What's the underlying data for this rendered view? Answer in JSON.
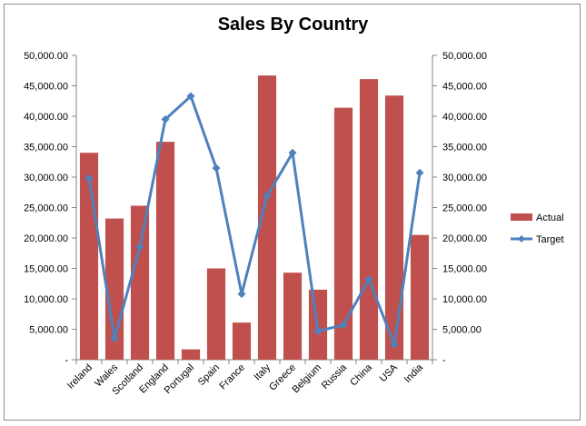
{
  "chart_data": {
    "type": "bar",
    "title": "Sales By Country",
    "categories": [
      "Ireland",
      "Wales",
      "Scotland",
      "England",
      "Portugal",
      "Spain",
      "France",
      "Italy",
      "Greece",
      "Belgium",
      "Russia",
      "China",
      "USA",
      "India"
    ],
    "series": [
      {
        "name": "Actual",
        "type": "bar",
        "color": "#c0504d",
        "values": [
          34000,
          23200,
          25300,
          35800,
          1700,
          15000,
          6100,
          46700,
          14300,
          11500,
          41400,
          46100,
          43400,
          20500
        ]
      },
      {
        "name": "Target",
        "type": "line",
        "marker": "diamond",
        "color": "#4f81bd",
        "values": [
          29800,
          3500,
          18500,
          39500,
          43300,
          31500,
          10800,
          26900,
          34000,
          4700,
          5700,
          13200,
          2500,
          30700
        ]
      }
    ],
    "ylim": [
      0,
      50000
    ],
    "y_ticks": [
      "-",
      "5,000.00",
      "10,000.00",
      "15,000.00",
      "20,000.00",
      "25,000.00",
      "30,000.00",
      "35,000.00",
      "40,000.00",
      "45,000.00",
      "50,000.00"
    ],
    "secondary_y_ticks": [
      "-",
      "5,000.00",
      "10,000.00",
      "15,000.00",
      "20,000.00",
      "25,000.00",
      "30,000.00",
      "35,000.00",
      "40,000.00",
      "45,000.00",
      "50,000.00"
    ],
    "grid": false,
    "legend": "right",
    "xlabel": "",
    "ylabel": ""
  }
}
